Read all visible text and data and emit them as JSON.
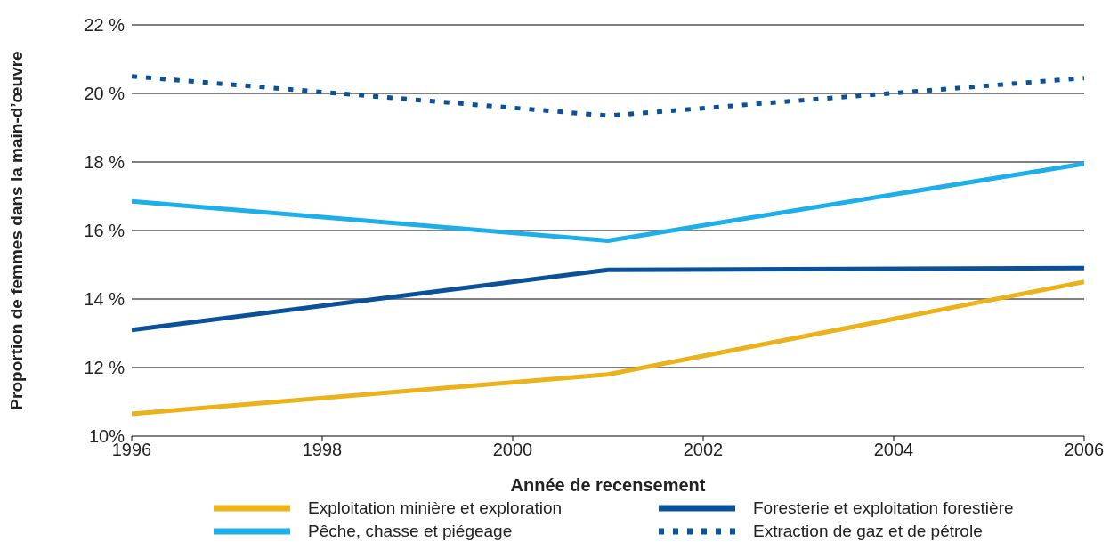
{
  "chart_data": {
    "type": "line",
    "xlabel": "Année de recensement",
    "ylabel": "Proportion de femmes dans la main-d’œuvre",
    "x": [
      1996,
      2001,
      2006
    ],
    "series": [
      {
        "name": "Exploitation minière et exploration",
        "color": "#ebb21b",
        "values": [
          10.65,
          11.8,
          14.5
        ]
      },
      {
        "name": "Foresterie et exploitation forestière",
        "color": "#0b5198",
        "values": [
          13.1,
          14.85,
          14.9
        ]
      },
      {
        "name": "Pêche, chasse et piégeage",
        "color": "#1eaee8",
        "values": [
          16.85,
          15.7,
          17.95
        ]
      },
      {
        "name": "Extraction de gaz et de pétrole",
        "color": "#0b5198",
        "values": [
          20.5,
          19.35,
          20.45
        ],
        "line_style": "dashed"
      }
    ],
    "xlim": [
      1996,
      2006
    ],
    "xticks": [
      1996,
      1998,
      2000,
      2002,
      2004,
      2006
    ],
    "ylim": [
      10,
      22
    ],
    "yticks": [
      {
        "value": 10,
        "label": "10%"
      },
      {
        "value": 12,
        "label": "12 %"
      },
      {
        "value": 14,
        "label": "14 %"
      },
      {
        "value": 16,
        "label": "16 %"
      },
      {
        "value": 18,
        "label": "18 %"
      },
      {
        "value": 20,
        "label": "20 %"
      },
      {
        "value": 22,
        "label": "22 %"
      }
    ],
    "grid": "y",
    "legend": "bottom",
    "marker": "none",
    "line_style": "solid"
  }
}
